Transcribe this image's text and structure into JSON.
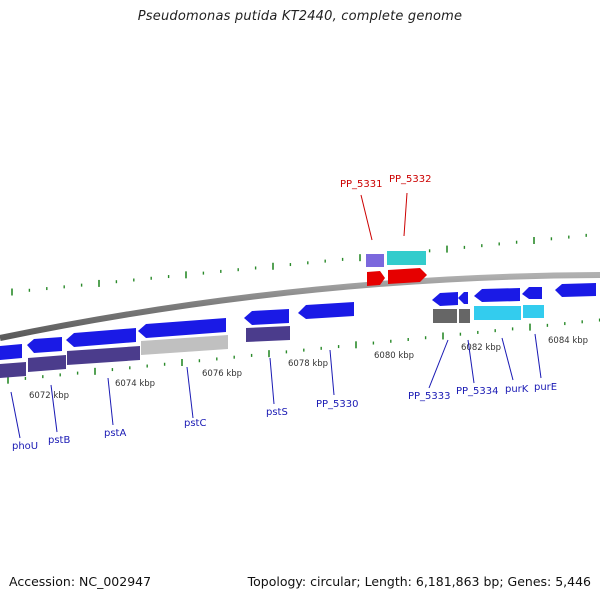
{
  "title": "Pseudomonas putida KT2440, complete genome",
  "footer": {
    "accession": "Accession: NC_002947",
    "topology": "Topology: circular; Length: 6,181,863 bp; Genes: 5,446"
  },
  "colors": {
    "backbone": "#888888",
    "minus_cds": "#1a1ae6",
    "minus_cds_dark": "#4b3c8c",
    "rna_red": "#e60000",
    "rna_cyan": "#33cccc",
    "gray_feature": "#666666",
    "light_gray_feature": "#c0c0c0",
    "light_blue_feature": "#33ccee",
    "tick": "#2a8a2a",
    "label_blue": "#1a1ab4",
    "label_red": "#cc0000"
  },
  "scale": {
    "unit": "kbp",
    "ticks": [
      {
        "kbp": 6072,
        "label": "6072 kbp"
      },
      {
        "kbp": 6074,
        "label": "6074 kbp"
      },
      {
        "kbp": 6076,
        "label": "6076 kbp"
      },
      {
        "kbp": 6078,
        "label": "6078 kbp"
      },
      {
        "kbp": 6080,
        "label": "6080 kbp"
      },
      {
        "kbp": 6082,
        "label": "6082 kbp"
      },
      {
        "kbp": 6084,
        "label": "6084 kbp"
      }
    ]
  },
  "genes": [
    {
      "name": "phoU",
      "color": "label_blue"
    },
    {
      "name": "pstB",
      "color": "label_blue"
    },
    {
      "name": "pstA",
      "color": "label_blue"
    },
    {
      "name": "pstC",
      "color": "label_blue"
    },
    {
      "name": "pstS",
      "color": "label_blue"
    },
    {
      "name": "PP_5330",
      "color": "label_blue"
    },
    {
      "name": "PP_5331",
      "color": "label_red"
    },
    {
      "name": "PP_5332",
      "color": "label_red"
    },
    {
      "name": "PP_5333",
      "color": "label_blue"
    },
    {
      "name": "PP_5334",
      "color": "label_blue"
    },
    {
      "name": "purK",
      "color": "label_blue"
    },
    {
      "name": "purE",
      "color": "label_blue"
    }
  ]
}
